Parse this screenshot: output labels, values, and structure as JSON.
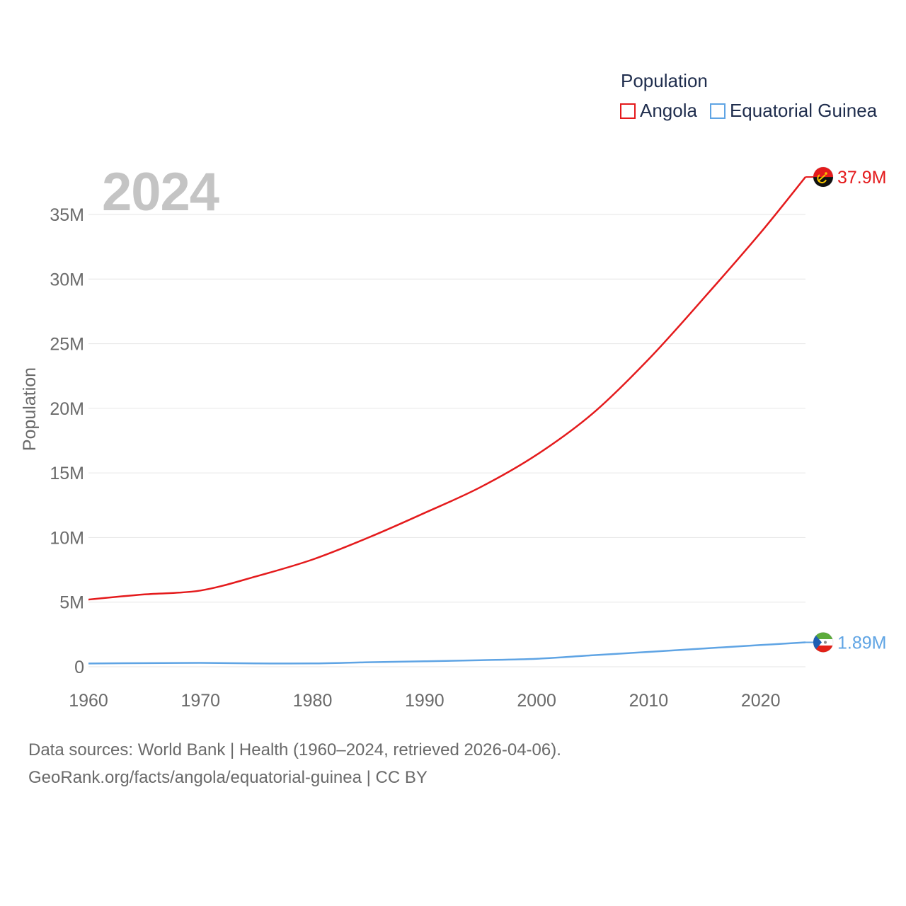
{
  "legend": {
    "title": "Population",
    "items": [
      {
        "name": "Angola",
        "color": "#e41a1c"
      },
      {
        "name": "Equatorial Guinea",
        "color": "#5fa4e4"
      }
    ]
  },
  "year_label": "2024",
  "footer": {
    "line1": "Data sources: World Bank | Health (1960–2024, retrieved 2026-04-06).",
    "line2": "GeoRank.org/facts/angola/equatorial-guinea | CC BY"
  },
  "chart_data": {
    "type": "line",
    "title": "Population",
    "xlabel": "",
    "ylabel": "Population",
    "xlim": [
      1960,
      2024
    ],
    "ylim": [
      0,
      37000000
    ],
    "x_ticks": [
      1960,
      1970,
      1980,
      1990,
      2000,
      2010,
      2020
    ],
    "y_ticks": [
      0,
      5000000,
      10000000,
      15000000,
      20000000,
      25000000,
      30000000,
      35000000
    ],
    "y_tick_labels": [
      "0",
      "5M",
      "10M",
      "15M",
      "20M",
      "25M",
      "30M",
      "35M"
    ],
    "grid": true,
    "legend_position": "top-right",
    "series": [
      {
        "name": "Angola",
        "color": "#e41a1c",
        "end_label": "37.9M",
        "flag": "angola-flag",
        "x": [
          1960,
          1965,
          1970,
          1975,
          1980,
          1985,
          1990,
          1995,
          2000,
          2005,
          2010,
          2015,
          2020,
          2024
        ],
        "values": [
          5200000,
          5600000,
          5900000,
          7000000,
          8300000,
          10000000,
          11900000,
          13900000,
          16400000,
          19600000,
          23800000,
          28600000,
          33600000,
          37900000
        ]
      },
      {
        "name": "Equatorial Guinea",
        "color": "#5fa4e4",
        "end_label": "1.89M",
        "flag": "equatorial-guinea-flag",
        "x": [
          1960,
          1965,
          1970,
          1975,
          1980,
          1985,
          1990,
          1995,
          2000,
          2005,
          2010,
          2015,
          2020,
          2024
        ],
        "values": [
          250000,
          280000,
          300000,
          260000,
          260000,
          350000,
          420000,
          510000,
          620000,
          890000,
          1150000,
          1420000,
          1680000,
          1890000
        ]
      }
    ]
  }
}
